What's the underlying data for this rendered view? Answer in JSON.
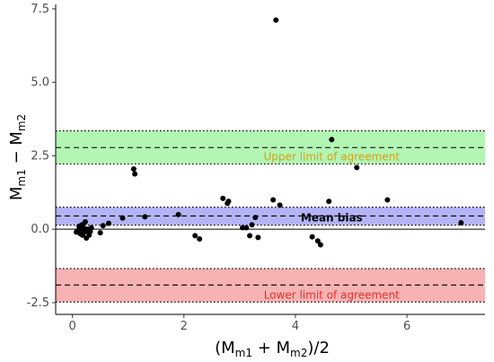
{
  "chart_data": {
    "type": "scatter",
    "title": "",
    "xlabel": {
      "open": "(M",
      "sub1": "m1",
      "plus": " + M",
      "sub2": "m2",
      "close": ")/2"
    },
    "ylabel": {
      "m1": "M",
      "sub1": "m1",
      "minus": " − M",
      "sub2": "m2"
    },
    "xlim": [
      -0.3,
      7.4
    ],
    "ylim": [
      -2.9,
      7.65
    ],
    "x_ticks": [
      0,
      2,
      4,
      6
    ],
    "x_tick_labels": [
      "0",
      "2",
      "4",
      "6"
    ],
    "y_ticks": [
      -2.5,
      0,
      2.5,
      5,
      7.5
    ],
    "y_tick_labels": [
      "-2.5",
      "0.0",
      "2.5",
      "5.0",
      "7.5"
    ],
    "grid": false,
    "zero_line": 0,
    "bands": [
      {
        "id": "upper",
        "label": "Upper limit of agreement",
        "center": 2.78,
        "lower": 2.22,
        "upper": 3.35,
        "fill": "#b3f5b3",
        "text_color": "#d4a017",
        "label_x": 4.65
      },
      {
        "id": "mean",
        "label": "Mean bias",
        "center": 0.45,
        "lower": 0.14,
        "upper": 0.75,
        "fill": "#b3b3f7",
        "text_color": "#000000",
        "label_x": 4.65
      },
      {
        "id": "lower",
        "label": "Lower limit of agreement",
        "center": -1.9,
        "lower": -2.48,
        "upper": -1.34,
        "fill": "#f7b3b3",
        "text_color": "#e03030",
        "label_x": 4.65
      }
    ],
    "points": [
      [
        0.07,
        -0.1
      ],
      [
        0.1,
        -0.05
      ],
      [
        0.12,
        0.1
      ],
      [
        0.14,
        -0.15
      ],
      [
        0.15,
        0.0
      ],
      [
        0.17,
        0.15
      ],
      [
        0.18,
        -0.2
      ],
      [
        0.2,
        0.05
      ],
      [
        0.22,
        -0.1
      ],
      [
        0.23,
        0.25
      ],
      [
        0.25,
        -0.3
      ],
      [
        0.27,
        0.0
      ],
      [
        0.28,
        -0.05
      ],
      [
        0.3,
        -0.2
      ],
      [
        0.32,
        -0.08
      ],
      [
        0.34,
        0.05
      ],
      [
        0.5,
        -0.12
      ],
      [
        0.55,
        0.12
      ],
      [
        0.65,
        0.2
      ],
      [
        0.9,
        0.38
      ],
      [
        1.1,
        2.05
      ],
      [
        1.12,
        1.88
      ],
      [
        1.3,
        0.42
      ],
      [
        1.9,
        0.5
      ],
      [
        2.2,
        -0.22
      ],
      [
        2.28,
        -0.33
      ],
      [
        2.7,
        1.05
      ],
      [
        2.78,
        0.88
      ],
      [
        2.8,
        0.95
      ],
      [
        3.05,
        0.05
      ],
      [
        3.12,
        0.05
      ],
      [
        3.18,
        -0.22
      ],
      [
        3.22,
        0.15
      ],
      [
        3.28,
        0.4
      ],
      [
        3.33,
        -0.28
      ],
      [
        3.6,
        1.0
      ],
      [
        3.65,
        7.12
      ],
      [
        3.72,
        0.82
      ],
      [
        4.3,
        -0.26
      ],
      [
        4.4,
        -0.4
      ],
      [
        4.45,
        -0.53
      ],
      [
        4.6,
        0.95
      ],
      [
        4.65,
        3.05
      ],
      [
        5.1,
        2.1
      ],
      [
        5.65,
        1.0
      ],
      [
        6.97,
        0.22
      ]
    ]
  }
}
